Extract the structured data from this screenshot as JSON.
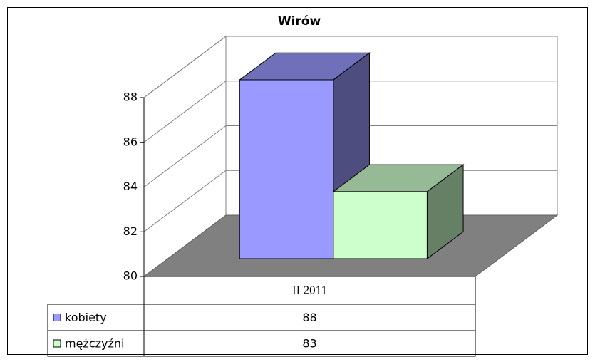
{
  "chart_data": {
    "type": "bar3d",
    "title": "Wirów",
    "categories": [
      "II 2011"
    ],
    "series": [
      {
        "name": "kobiety",
        "color": "#9999ff",
        "values": [
          88
        ]
      },
      {
        "name": "mężczyźni",
        "color": "#ccffcc",
        "values": [
          83
        ]
      }
    ],
    "ylim": [
      80,
      88
    ],
    "yticks": [
      80,
      82,
      84,
      86,
      88
    ],
    "grid": true,
    "legend": "table"
  }
}
